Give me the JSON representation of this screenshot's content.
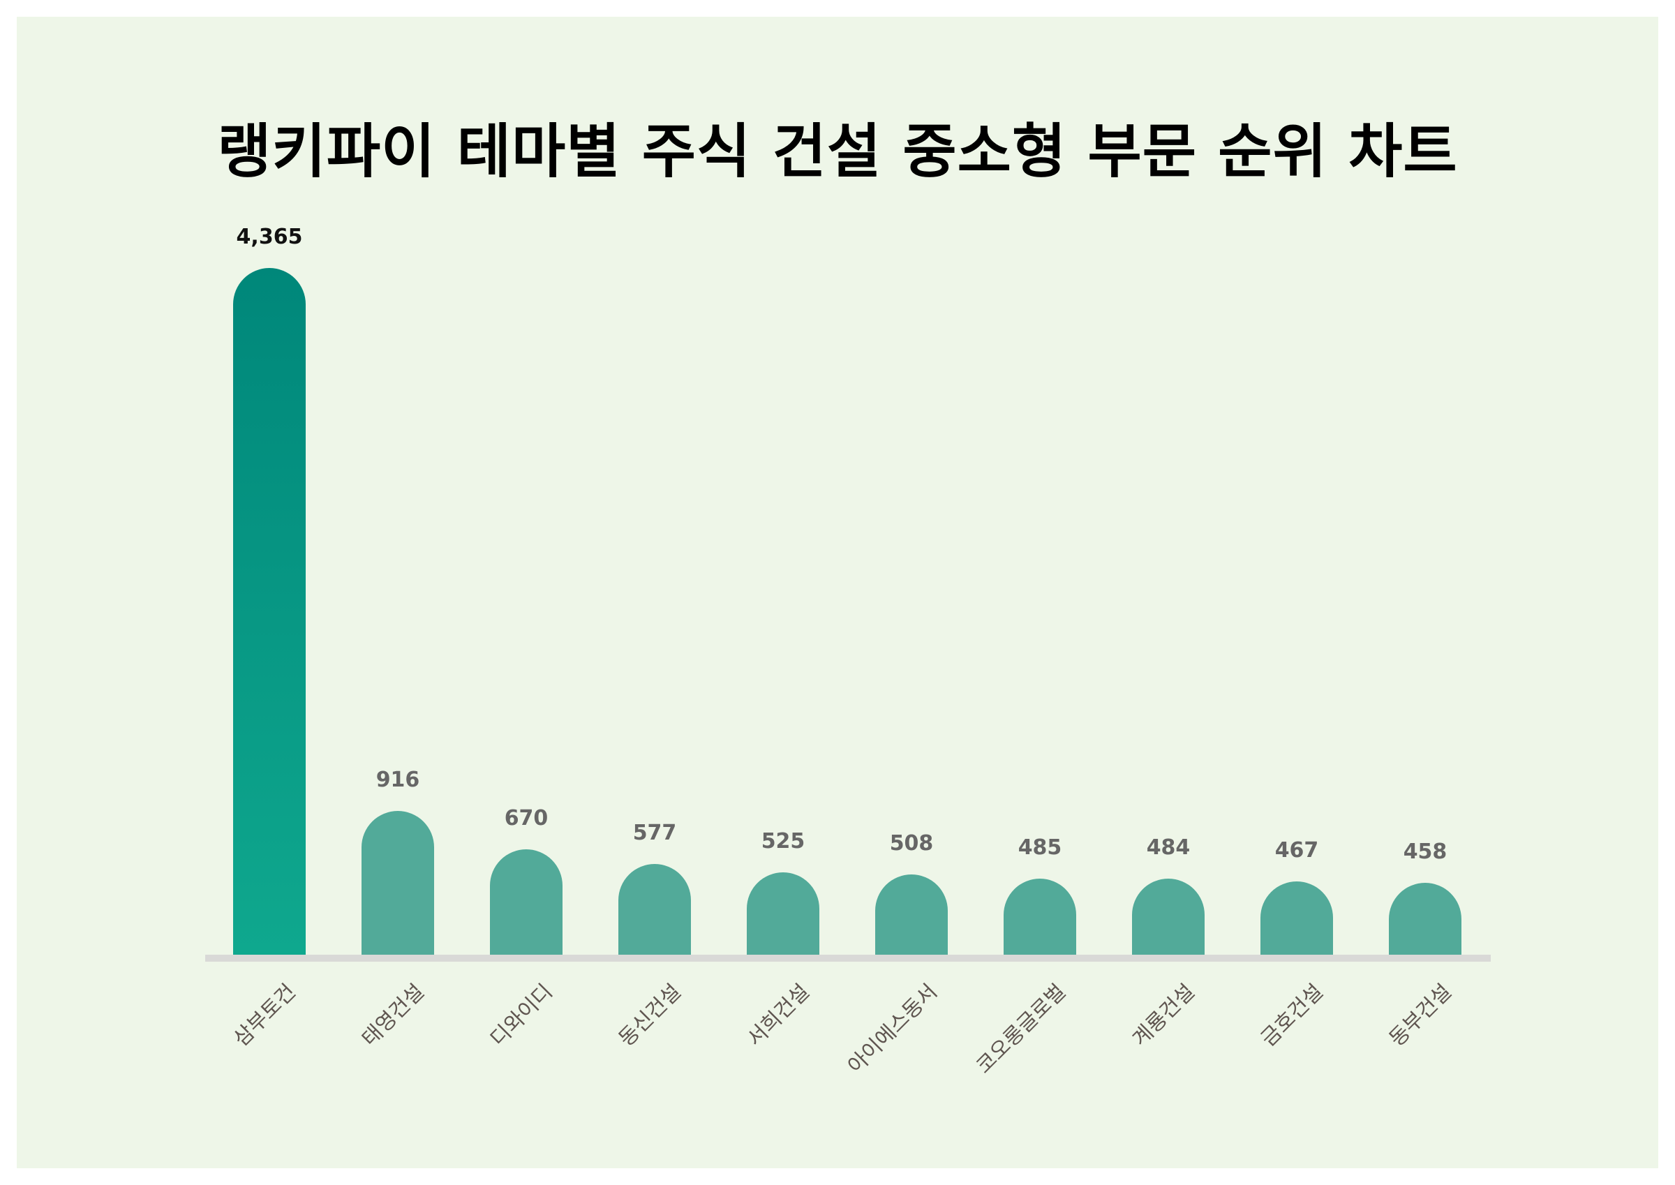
{
  "title": "랭키파이 테마별 주식 건설 중소형 부문 순위 차트",
  "colors": {
    "background": "#eef6e8",
    "top_bar_gradient_top": "#00877a",
    "top_bar_gradient_bottom": "#0fa88e",
    "bar": "#52aa99",
    "baseline": "#d9d9d7",
    "value_label": "#666666",
    "top_value_label": "#111111",
    "axis_label": "#5f5550"
  },
  "chart_data": {
    "type": "bar",
    "title": "랭키파이 테마별 주식 건설 중소형 부문 순위 차트",
    "xlabel": "",
    "ylabel": "",
    "categories": [
      "삼부토건",
      "태영건설",
      "디와이디",
      "동신건설",
      "서희건설",
      "아이에스동서",
      "코오롱글로벌",
      "계룡건설",
      "금호건설",
      "동부건설"
    ],
    "values": [
      4365,
      916,
      670,
      577,
      525,
      508,
      485,
      484,
      467,
      458
    ],
    "value_labels": [
      "4,365",
      "916",
      "670",
      "577",
      "525",
      "508",
      "485",
      "484",
      "467",
      "458"
    ],
    "ylim": [
      0,
      4365
    ],
    "grid": false,
    "legend": null,
    "bar_style": "rounded-top"
  }
}
